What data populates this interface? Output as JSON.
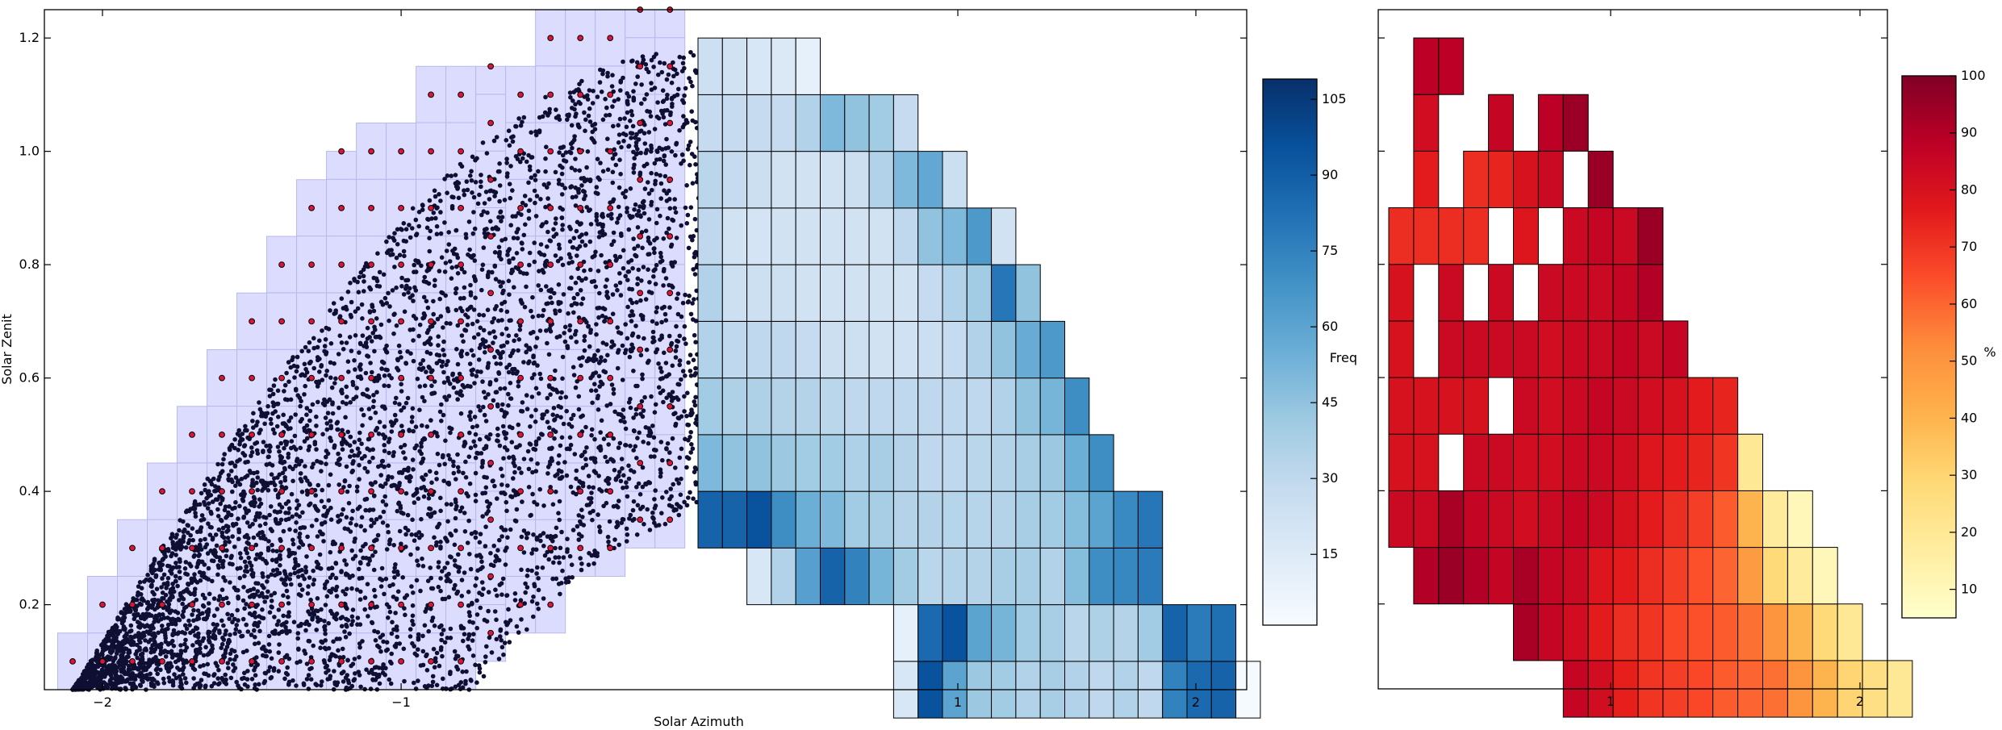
{
  "chart_data": [
    {
      "type": "scatter",
      "xlabel": "Solar Azimuth",
      "ylabel": "Solar Zenit",
      "xlim": [
        -2.2,
        0.0
      ],
      "ylim": [
        0.05,
        1.25
      ],
      "xticks": [
        -2,
        -1
      ],
      "xtick_labels": [
        "−2",
        "−1"
      ],
      "yticks": [
        0.2,
        0.4,
        0.6,
        0.8,
        1.0,
        1.2
      ],
      "ytick_labels": [
        "0.2",
        "0.4",
        "0.6",
        "0.8",
        "1.0",
        "1.2"
      ],
      "grid": false,
      "bin_width": 0.1,
      "bin_height": 0.1,
      "series": [
        {
          "role": "samples",
          "marker": "circle",
          "color": "#0f0f33",
          "edge": "#000000"
        },
        {
          "role": "bin centers",
          "marker": "circle",
          "color": "#dc143c",
          "edge": "#000000"
        },
        {
          "role": "bin cells",
          "marker": "rect",
          "color": "#dcdcff",
          "edge": "#b8b8ee"
        }
      ],
      "sample_band": {
        "inner_apex_y": 0.35,
        "outer_apex_y": 1.18,
        "inner_foot_x": -0.75,
        "outer_foot_x": -2.1,
        "inner_base_y": 0.05,
        "outer_base_y": 0.05
      },
      "column_extents": [
        [
          -2.1,
          0.05,
          0.15
        ],
        [
          -2.0,
          0.05,
          0.25
        ],
        [
          -1.9,
          0.05,
          0.35
        ],
        [
          -1.8,
          0.05,
          0.45
        ],
        [
          -1.7,
          0.05,
          0.55
        ],
        [
          -1.6,
          0.05,
          0.65
        ],
        [
          -1.5,
          0.05,
          0.75
        ],
        [
          -1.4,
          0.05,
          0.85
        ],
        [
          -1.3,
          0.05,
          0.95
        ],
        [
          -1.2,
          0.05,
          1.0
        ],
        [
          -1.1,
          0.05,
          1.05
        ],
        [
          -1.0,
          0.05,
          1.05
        ],
        [
          -0.9,
          0.05,
          1.15
        ],
        [
          -0.8,
          0.05,
          1.15
        ],
        [
          -0.7,
          0.1,
          1.15
        ],
        [
          -0.6,
          0.15,
          1.15
        ],
        [
          -0.5,
          0.15,
          1.25
        ],
        [
          -0.4,
          0.25,
          1.25
        ],
        [
          -0.3,
          0.25,
          1.25
        ],
        [
          -0.2,
          0.3,
          1.25
        ],
        [
          -0.1,
          0.3,
          1.25
        ]
      ],
      "colors": {
        "axes": "#000000"
      }
    },
    {
      "type": "heatmap",
      "colormap": "Blues",
      "xticks": [
        1,
        2
      ],
      "xtick_labels": [
        "1",
        "2"
      ],
      "xlim": [
        0.0,
        2.2
      ],
      "ylim": [
        0.05,
        1.25
      ],
      "x_start": 0.0,
      "bin_width": 0.1,
      "bin_height": 0.1,
      "rows_y_from_bottom": [
        0.05,
        0.15,
        0.25,
        0.35,
        0.45,
        0.55,
        0.65,
        0.75,
        0.85,
        0.95,
        1.05,
        1.15
      ],
      "values": [
        [
          null,
          null,
          null,
          null,
          null,
          null,
          null,
          null,
          18,
          95,
          60,
          42,
          40,
          35,
          38,
          35,
          30,
          35,
          30,
          75,
          85,
          88,
          2
        ],
        [
          null,
          null,
          null,
          null,
          null,
          null,
          null,
          null,
          10,
          85,
          95,
          60,
          52,
          40,
          38,
          32,
          36,
          34,
          40,
          88,
          78,
          83,
          null
        ],
        [
          null,
          null,
          18,
          35,
          62,
          88,
          75,
          52,
          40,
          32,
          34,
          34,
          38,
          38,
          35,
          48,
          70,
          73,
          78,
          null,
          null,
          null,
          null
        ],
        [
          88,
          88,
          95,
          70,
          55,
          50,
          40,
          38,
          34,
          34,
          33,
          33,
          34,
          38,
          40,
          48,
          60,
          72,
          80,
          null,
          null,
          null,
          null
        ],
        [
          50,
          45,
          45,
          42,
          40,
          40,
          36,
          38,
          34,
          30,
          30,
          32,
          34,
          38,
          42,
          55,
          70,
          null,
          null,
          null,
          null,
          null,
          null
        ],
        [
          40,
          36,
          36,
          34,
          34,
          32,
          30,
          30,
          30,
          30,
          30,
          30,
          35,
          45,
          52,
          70,
          null,
          null,
          null,
          null,
          null,
          null,
          null
        ],
        [
          35,
          30,
          30,
          30,
          28,
          25,
          24,
          22,
          23,
          25,
          28,
          35,
          45,
          56,
          65,
          null,
          null,
          null,
          null,
          null,
          null,
          null,
          null
        ],
        [
          35,
          24,
          24,
          24,
          22,
          22,
          22,
          22,
          22,
          28,
          35,
          40,
          80,
          45,
          null,
          null,
          null,
          null,
          null,
          null,
          null,
          null,
          null
        ],
        [
          30,
          22,
          20,
          22,
          22,
          22,
          22,
          22,
          30,
          45,
          50,
          65,
          22,
          null,
          null,
          null,
          null,
          null,
          null,
          null,
          null,
          null,
          null
        ],
        [
          32,
          28,
          25,
          22,
          22,
          22,
          25,
          35,
          50,
          58,
          25,
          null,
          null,
          null,
          null,
          null,
          null,
          null,
          null,
          null,
          null,
          null,
          null
        ],
        [
          28,
          28,
          28,
          28,
          35,
          50,
          45,
          40,
          28,
          null,
          null,
          null,
          null,
          null,
          null,
          null,
          null,
          null,
          null,
          null,
          null,
          null,
          null
        ],
        [
          24,
          22,
          18,
          16,
          10,
          null,
          null,
          null,
          null,
          null,
          null,
          null,
          null,
          null,
          null,
          null,
          null,
          null,
          null,
          null,
          null,
          null,
          null
        ]
      ],
      "colorbar": {
        "label": "Freq",
        "min": 1,
        "max": 109,
        "ticks": [
          15,
          30,
          45,
          60,
          75,
          90,
          105
        ]
      },
      "colors": {
        "low": "#f7fbff",
        "high": "#08306b"
      }
    },
    {
      "type": "heatmap",
      "colormap": "YlOrRd",
      "xticks": [
        1,
        2
      ],
      "xtick_labels": [
        "1",
        "2"
      ],
      "xlim": [
        0.1,
        2.15
      ],
      "ylim": [
        0.05,
        1.25
      ],
      "x_start": 0.1,
      "bin_width": 0.1,
      "bin_height": 0.1,
      "rows_y_from_bottom": [
        0.05,
        0.15,
        0.25,
        0.35,
        0.45,
        0.55,
        0.65,
        0.75,
        0.85,
        0.95,
        1.05,
        1.15
      ],
      "values": [
        [
          null,
          null,
          null,
          null,
          null,
          null,
          null,
          86,
          82,
          75,
          70,
          68,
          66,
          62,
          60,
          58,
          50,
          40,
          30,
          25,
          20
        ],
        [
          null,
          null,
          null,
          null,
          null,
          92,
          86,
          82,
          76,
          72,
          70,
          66,
          64,
          62,
          58,
          50,
          40,
          28,
          20,
          null,
          null
        ],
        [
          null,
          90,
          95,
          90,
          86,
          92,
          86,
          84,
          78,
          76,
          72,
          68,
          64,
          60,
          48,
          28,
          18,
          10,
          null,
          null,
          null
        ],
        [
          84,
          84,
          92,
          86,
          84,
          82,
          84,
          86,
          84,
          80,
          76,
          72,
          68,
          62,
          40,
          18,
          10,
          null,
          null,
          null,
          null
        ],
        [
          80,
          80,
          null,
          84,
          84,
          82,
          82,
          84,
          84,
          82,
          78,
          76,
          74,
          70,
          20,
          null,
          null,
          null,
          null,
          null,
          null
        ],
        [
          80,
          80,
          80,
          80,
          null,
          84,
          82,
          84,
          86,
          84,
          82,
          80,
          76,
          74,
          null,
          null,
          null,
          null,
          null,
          null,
          null
        ],
        [
          80,
          null,
          84,
          84,
          84,
          84,
          82,
          84,
          84,
          86,
          84,
          86,
          null,
          null,
          null,
          null,
          null,
          null,
          null,
          null,
          null
        ],
        [
          80,
          null,
          84,
          null,
          84,
          null,
          84,
          84,
          84,
          86,
          90,
          null,
          null,
          null,
          null,
          null,
          null,
          null,
          null,
          null,
          null
        ],
        [
          72,
          72,
          72,
          72,
          null,
          78,
          null,
          84,
          86,
          84,
          95,
          null,
          null,
          null,
          null,
          null,
          null,
          null,
          null,
          null,
          null
        ],
        [
          null,
          76,
          null,
          72,
          74,
          80,
          84,
          null,
          95,
          null,
          null,
          null,
          null,
          null,
          null,
          null,
          null,
          null,
          null,
          null,
          null
        ],
        [
          null,
          82,
          null,
          null,
          86,
          null,
          88,
          95,
          null,
          null,
          null,
          null,
          null,
          null,
          null,
          null,
          null,
          null,
          null,
          null,
          null
        ],
        [
          null,
          88,
          88,
          null,
          null,
          null,
          null,
          null,
          null,
          null,
          null,
          null,
          null,
          null,
          null,
          null,
          null,
          null,
          null,
          null,
          null
        ]
      ],
      "colorbar": {
        "label": "%",
        "min": 5,
        "max": 100,
        "ticks": [
          10,
          20,
          30,
          40,
          50,
          60,
          70,
          80,
          90,
          100
        ]
      },
      "colors": {
        "low": "#ffffcc",
        "high": "#800026"
      }
    }
  ]
}
